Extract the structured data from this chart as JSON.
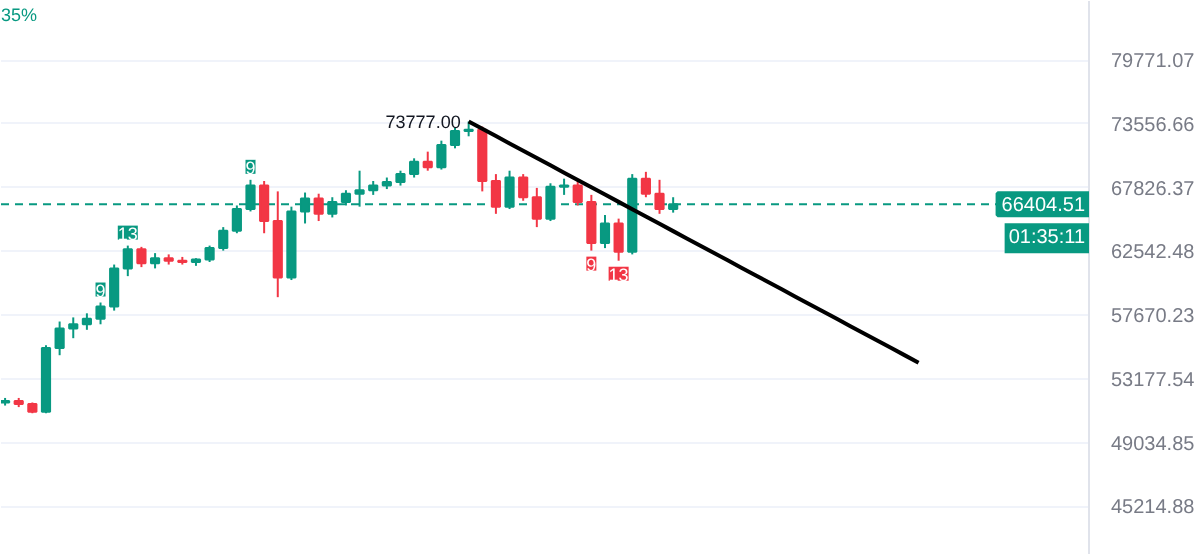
{
  "chart_data": {
    "type": "candlestick",
    "categories": [
      null,
      null,
      null,
      null,
      null,
      null,
      null,
      null,
      null,
      null,
      null,
      null,
      null,
      null,
      null,
      null,
      null,
      null,
      null,
      null,
      null,
      null,
      null,
      null,
      null,
      null,
      null,
      null,
      null,
      null,
      null,
      null,
      null,
      null,
      null,
      null,
      null,
      null,
      null,
      null,
      null,
      null,
      null,
      null,
      null,
      null,
      null,
      null,
      null,
      null,
      null,
      null,
      null,
      null,
      null,
      null,
      null,
      null,
      null,
      null,
      null,
      null,
      null,
      null,
      null,
      null,
      null,
      null,
      null,
      null,
      null,
      null,
      null,
      null,
      null,
      null,
      null,
      null,
      null,
      null
    ],
    "ohlc": [
      [
        51600,
        51900,
        51400,
        51700
      ],
      [
        51700,
        51900,
        51300,
        51500
      ],
      [
        51500,
        51600,
        50900,
        51000
      ],
      [
        51000,
        55500,
        50900,
        55300
      ],
      [
        55300,
        57200,
        54800,
        56700
      ],
      [
        56700,
        57500,
        56000,
        57000
      ],
      [
        57000,
        57800,
        56600,
        57400
      ],
      [
        57400,
        58600,
        57000,
        58300
      ],
      [
        58300,
        61500,
        58000,
        61200
      ],
      [
        61200,
        63000,
        60600,
        62700
      ],
      [
        62700,
        62900,
        61300,
        61600
      ],
      [
        61600,
        62400,
        61200,
        62000
      ],
      [
        62000,
        62300,
        61500,
        61800
      ],
      [
        61800,
        62100,
        61500,
        61700
      ],
      [
        61700,
        62000,
        61400,
        61900
      ],
      [
        61900,
        63000,
        61700,
        62800
      ],
      [
        62800,
        64500,
        62600,
        64200
      ],
      [
        64200,
        66300,
        64000,
        66000
      ],
      [
        66000,
        68500,
        65800,
        68000
      ],
      [
        68000,
        68400,
        64000,
        65000
      ],
      [
        65000,
        67500,
        59000,
        60500
      ],
      [
        60500,
        66200,
        60300,
        65800
      ],
      [
        65800,
        67400,
        64800,
        66900
      ],
      [
        66900,
        67300,
        65000,
        65600
      ],
      [
        65600,
        67000,
        65300,
        66600
      ],
      [
        66600,
        67600,
        66300,
        67300
      ],
      [
        67300,
        69300,
        66200,
        67600
      ],
      [
        67600,
        68400,
        67200,
        68000
      ],
      [
        68000,
        68700,
        67700,
        68300
      ],
      [
        68300,
        69300,
        68000,
        69000
      ],
      [
        69000,
        70400,
        68700,
        70100
      ],
      [
        70100,
        71000,
        69300,
        69600
      ],
      [
        69600,
        72000,
        69400,
        71600
      ],
      [
        71600,
        73200,
        71300,
        72900
      ],
      [
        72900,
        73777,
        72400,
        73000
      ],
      [
        73000,
        73300,
        67500,
        68400
      ],
      [
        68400,
        69000,
        65600,
        66200
      ],
      [
        66200,
        69300,
        66000,
        68700
      ],
      [
        68700,
        69000,
        66700,
        67000
      ],
      [
        67000,
        67800,
        64500,
        65200
      ],
      [
        65200,
        68200,
        65000,
        67900
      ],
      [
        67900,
        68600,
        67200,
        68000
      ],
      [
        68000,
        68400,
        66300,
        66600
      ],
      [
        66600,
        67200,
        62600,
        63200
      ],
      [
        63200,
        65500,
        62800,
        64800
      ],
      [
        64800,
        65200,
        61800,
        62500
      ],
      [
        62500,
        69000,
        62300,
        68600
      ],
      [
        68600,
        69200,
        67000,
        67300
      ],
      [
        67300,
        68500,
        65600,
        66000
      ],
      [
        66000,
        67000,
        65700,
        66404.51
      ],
      null,
      null,
      null,
      null,
      null,
      null,
      null,
      null,
      null,
      null,
      null,
      null,
      null,
      null,
      null,
      null,
      null,
      null,
      null,
      null,
      null,
      null,
      null,
      null,
      null,
      null,
      null,
      null,
      null,
      null
    ],
    "colors": [
      "#089981",
      "#f23645",
      "#f23645",
      "#089981",
      "#089981",
      "#089981",
      "#089981",
      "#089981",
      "#089981",
      "#089981",
      "#f23645",
      "#089981",
      "#f23645",
      "#f23645",
      "#089981",
      "#089981",
      "#089981",
      "#089981",
      "#089981",
      "#f23645",
      "#f23645",
      "#089981",
      "#089981",
      "#f23645",
      "#089981",
      "#089981",
      "#089981",
      "#089981",
      "#089981",
      "#089981",
      "#089981",
      "#f23645",
      "#089981",
      "#089981",
      "#089981",
      "#f23645",
      "#f23645",
      "#089981",
      "#f23645",
      "#f23645",
      "#089981",
      "#089981",
      "#f23645",
      "#f23645",
      "#089981",
      "#f23645",
      "#089981",
      "#f23645",
      "#f23645",
      "#089981",
      null,
      null,
      null,
      null,
      null,
      null,
      null,
      null,
      null,
      null,
      null,
      null,
      null,
      null,
      null,
      null,
      null,
      null,
      null,
      null,
      null,
      null,
      null,
      null,
      null,
      null,
      null,
      null,
      null,
      null
    ],
    "series": [
      {
        "type": "line",
        "color": "#000000",
        "values": [
          null,
          null,
          null,
          null,
          null,
          null,
          null,
          null,
          null,
          null,
          null,
          null,
          null,
          null,
          null,
          null,
          null,
          null,
          null,
          null,
          null,
          null,
          null,
          null,
          null,
          null,
          null,
          null,
          null,
          null,
          null,
          null,
          null,
          null,
          73777,
          73094,
          72418,
          71748,
          71084,
          70426,
          69774,
          69128,
          68488,
          67854,
          67226,
          66604,
          65988,
          65377,
          64772,
          64172,
          63578,
          62990,
          62407,
          61829,
          61257,
          60690,
          60128,
          59572,
          59020,
          58474,
          57933,
          57397,
          56865,
          56339,
          55818,
          55301,
          54789,
          54280,
          null,
          null,
          null,
          null,
          null,
          null,
          null,
          null,
          null,
          null,
          null,
          null
        ]
      }
    ],
    "log": true,
    "ylim": [
      42500,
      86000
    ],
    "yticks": [
      45214.88,
      49034.85,
      53177.54,
      57670.23,
      62542.48,
      67826.37,
      73556.66,
      79771.07
    ],
    "tick_labels": "y",
    "grid": "y",
    "ref_lines": [
      {
        "axis": "y",
        "value": 66404.51,
        "label": "66404.51",
        "color": "#089981",
        "line_style": "dashed"
      }
    ],
    "annotations": [
      "73777.00",
      "9",
      "13",
      "9",
      "9",
      "13",
      "01:35:11",
      "35%"
    ]
  }
}
